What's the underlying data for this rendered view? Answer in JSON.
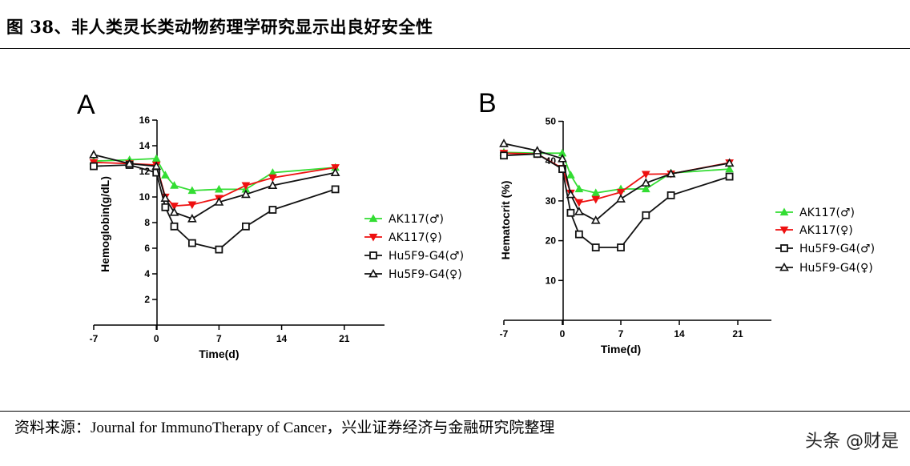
{
  "header": {
    "title": "图 38、非人类灵长类动物药理学研究显示出良好安全性"
  },
  "footer": {
    "source": "资料来源：Journal for ImmunoTherapy of Cancer，兴业证券经济与金融研究院整理",
    "watermark": "头条 @财是"
  },
  "colors": {
    "green": "#33dd33",
    "red": "#ee1111",
    "black": "#111111"
  },
  "chart_data": [
    {
      "type": "line",
      "panel": "A",
      "xlabel": "Time(d)",
      "ylabel": "Hemoglobin(g/dL)",
      "xlim": [
        -7,
        25
      ],
      "ylim": [
        0,
        16
      ],
      "xticks": [
        -7,
        0,
        7,
        14,
        21
      ],
      "yticks": [
        2,
        4,
        6,
        8,
        10,
        12,
        14,
        16
      ],
      "legend_position": "right",
      "series": [
        {
          "name": "AK117(♂)",
          "color": "#33dd33",
          "marker": "triangle-up-filled",
          "x": [
            -7,
            -3,
            0,
            1,
            2,
            4,
            7,
            10,
            13,
            20
          ],
          "y": [
            12.8,
            12.9,
            13.0,
            11.7,
            10.9,
            10.5,
            10.6,
            10.6,
            11.9,
            12.3
          ]
        },
        {
          "name": "AK117(♀)",
          "color": "#ee1111",
          "marker": "triangle-down-filled",
          "x": [
            -7,
            -3,
            0,
            1,
            2,
            4,
            7,
            10,
            13,
            20
          ],
          "y": [
            12.7,
            12.6,
            12.5,
            10.0,
            9.3,
            9.4,
            9.9,
            10.9,
            11.5,
            12.3
          ]
        },
        {
          "name": "Hu5F9-G4(♂)",
          "color": "#111111",
          "marker": "square-open",
          "x": [
            -7,
            -3,
            0,
            1,
            2,
            4,
            7,
            10,
            13,
            20
          ],
          "y": [
            12.4,
            12.5,
            11.9,
            9.2,
            7.7,
            6.4,
            5.9,
            7.7,
            9.0,
            10.6
          ]
        },
        {
          "name": "Hu5F9-G4(♀)",
          "color": "#111111",
          "marker": "triangle-up-open",
          "x": [
            -7,
            -3,
            0,
            1,
            2,
            4,
            7,
            10,
            13,
            20
          ],
          "y": [
            13.3,
            12.6,
            12.4,
            9.9,
            8.8,
            8.3,
            9.6,
            10.2,
            10.9,
            11.9
          ]
        }
      ]
    },
    {
      "type": "line",
      "panel": "B",
      "xlabel": "Time(d)",
      "ylabel": "Hematocrit (%)",
      "xlim": [
        -7,
        25
      ],
      "ylim": [
        0,
        50
      ],
      "xticks": [
        -7,
        0,
        7,
        14,
        21
      ],
      "yticks": [
        10,
        20,
        30,
        40,
        50
      ],
      "legend_position": "right",
      "series": [
        {
          "name": "AK117(♂)",
          "color": "#33dd33",
          "marker": "triangle-up-filled",
          "x": [
            -7,
            -3,
            0,
            1,
            2,
            4,
            7,
            10,
            13,
            20
          ],
          "y": [
            42.2,
            42.0,
            42.0,
            36.5,
            33.0,
            32.0,
            33.0,
            33.0,
            37.0,
            38.0
          ]
        },
        {
          "name": "AK117(♀)",
          "color": "#ee1111",
          "marker": "triangle-down-filled",
          "x": [
            -7,
            -3,
            0,
            1,
            2,
            4,
            7,
            10,
            13,
            20
          ],
          "y": [
            42.0,
            41.8,
            38.2,
            32.0,
            29.6,
            30.4,
            32.2,
            36.7,
            36.8,
            39.6
          ]
        },
        {
          "name": "Hu5F9-G4(♂)",
          "color": "#111111",
          "marker": "square-open",
          "x": [
            -7,
            -3,
            0,
            1,
            2,
            4,
            7,
            10,
            13,
            20
          ],
          "y": [
            41.4,
            41.8,
            38.0,
            27.0,
            21.6,
            18.3,
            18.3,
            26.4,
            31.4,
            36.1
          ]
        },
        {
          "name": "Hu5F9-G4(♀)",
          "color": "#111111",
          "marker": "triangle-up-open",
          "x": [
            -7,
            -3,
            0,
            1,
            2,
            4,
            7,
            10,
            13,
            20
          ],
          "y": [
            44.4,
            42.6,
            40.6,
            31.6,
            27.3,
            25.1,
            30.5,
            34.5,
            36.8,
            39.5
          ]
        }
      ]
    }
  ]
}
